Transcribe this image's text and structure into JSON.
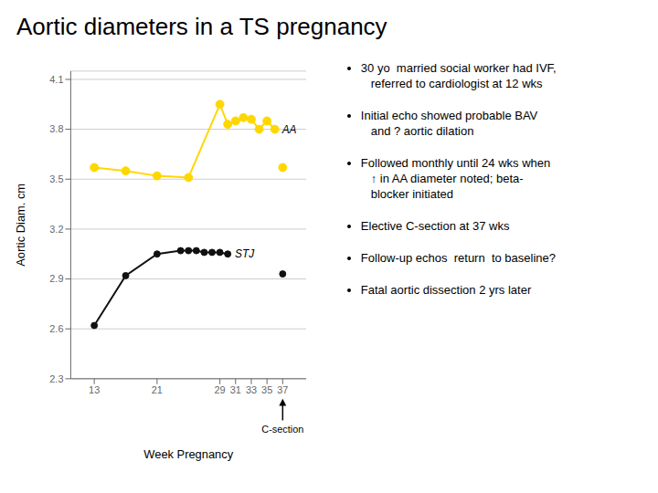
{
  "chart_data": {
    "type": "line",
    "title": "Aortic diameters in a TS pregnancy",
    "x_label": "Week Pregnancy",
    "y_label": "Aortic Diam. cm",
    "xlim": [
      10,
      40
    ],
    "ylim": [
      2.3,
      4.15
    ],
    "xticks": [
      13,
      21,
      29,
      31,
      33,
      35,
      37
    ],
    "yticks": [
      2.3,
      2.6,
      2.9,
      3.2,
      3.5,
      3.8,
      4.1
    ],
    "grid": "y",
    "series": [
      {
        "name": "AA",
        "color": "#FFD700",
        "marker": "circle",
        "line_style": "solid",
        "x": [
          13,
          17,
          21,
          25,
          29,
          30,
          31,
          32,
          33,
          34,
          35,
          36
        ],
        "values": [
          3.57,
          3.55,
          3.52,
          3.51,
          3.95,
          3.83,
          3.85,
          3.87,
          3.86,
          3.8,
          3.85,
          3.8
        ]
      },
      {
        "name": "AA",
        "color": "#FFD700",
        "marker": "circle",
        "line_style": "none",
        "x": [
          37
        ],
        "values": [
          3.57
        ]
      },
      {
        "name": "STJ",
        "color": "#111111",
        "marker": "circle",
        "line_style": "solid",
        "x": [
          13,
          17,
          21,
          24,
          25,
          26,
          27,
          28,
          29,
          30
        ],
        "values": [
          2.62,
          2.92,
          3.05,
          3.07,
          3.07,
          3.07,
          3.06,
          3.06,
          3.06,
          3.05
        ]
      },
      {
        "name": "STJ",
        "color": "#111111",
        "marker": "circle",
        "line_style": "none",
        "x": [
          37
        ],
        "values": [
          2.93
        ]
      }
    ],
    "annotations": [
      {
        "text": "C-section",
        "x": 37
      }
    ],
    "bullet_points": [
      "30 yo  married social worker had IVF,\n   referred to cardiologist at 12 wks",
      "Initial echo showed probable BAV\n   and ? aortic dilation",
      "Followed monthly until 24 wks when\n   ↑ in AA diameter noted; beta-\n   blocker initiated",
      "Elective C-section at 37 wks",
      "Follow-up echos  return  to baseline?",
      "Fatal aortic dissection 2 yrs later"
    ]
  }
}
